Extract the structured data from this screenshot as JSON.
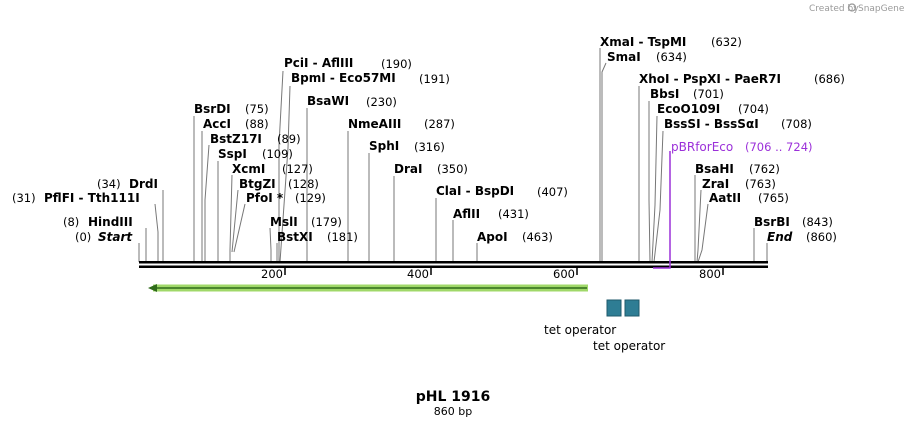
{
  "credit": {
    "text": "Created by",
    "brand": "SnapGene"
  },
  "plasmid": {
    "name": "pHL 1916",
    "length_label": "860 bp",
    "length": 860
  },
  "ticks": [
    "200",
    "400",
    "600",
    "800"
  ],
  "sites": [
    {
      "name": "HindIII",
      "pos": "(8)"
    },
    {
      "name": "Start",
      "pos": "(0)"
    },
    {
      "name": "PflFI  - Tth111I",
      "pos": "(31)"
    },
    {
      "name": "DrdI",
      "pos": "(34)"
    },
    {
      "name": "BsrDI",
      "pos": "(75)"
    },
    {
      "name": "AccI",
      "pos": "(88)"
    },
    {
      "name": "BstZ17I",
      "pos": "(89)"
    },
    {
      "name": "SspI",
      "pos": "(109)"
    },
    {
      "name": "XcmI",
      "pos": "(127)"
    },
    {
      "name": "BtgZI",
      "pos": "(128)"
    },
    {
      "name": "PfoI *",
      "pos": "(129)"
    },
    {
      "name": "MslI",
      "pos": "(179)"
    },
    {
      "name": "BstXI",
      "pos": "(181)"
    },
    {
      "name": "PciI  - AflIII",
      "pos": "(190)"
    },
    {
      "name": "BpmI  - Eco57MI",
      "pos": "(191)"
    },
    {
      "name": "BsaWI",
      "pos": "(230)"
    },
    {
      "name": "NmeAIII",
      "pos": "(287)"
    },
    {
      "name": "SphI",
      "pos": "(316)"
    },
    {
      "name": "DraI",
      "pos": "(350)"
    },
    {
      "name": "ClaI  - BspDI",
      "pos": "(407)"
    },
    {
      "name": "AflII",
      "pos": "(431)"
    },
    {
      "name": "ApoI",
      "pos": "(463)"
    },
    {
      "name": "XmaI  - TspMI",
      "pos": "(632)"
    },
    {
      "name": "SmaI",
      "pos": "(634)"
    },
    {
      "name": "XhoI  - PspXI  - PaeR7I",
      "pos": "(686)"
    },
    {
      "name": "BbsI",
      "pos": "(701)"
    },
    {
      "name": "EcoO109I",
      "pos": "(704)"
    },
    {
      "name": "BssSI  - BssSαI",
      "pos": "(708)"
    },
    {
      "name": "BsaHI",
      "pos": "(762)"
    },
    {
      "name": "ZraI",
      "pos": "(763)"
    },
    {
      "name": "AatII",
      "pos": "(765)"
    },
    {
      "name": "BsrBI",
      "pos": "(843)"
    },
    {
      "name": "End",
      "pos": "(860)"
    }
  ],
  "primer": {
    "name": "pBRforEco",
    "range": "(706 .. 724)",
    "color": "#9b30d9"
  },
  "features": [
    {
      "name": "tet operator",
      "color": "#2e7d94"
    },
    {
      "name": "tet operator",
      "color": "#2e7d94"
    }
  ],
  "orf_color": "#8fd14f"
}
